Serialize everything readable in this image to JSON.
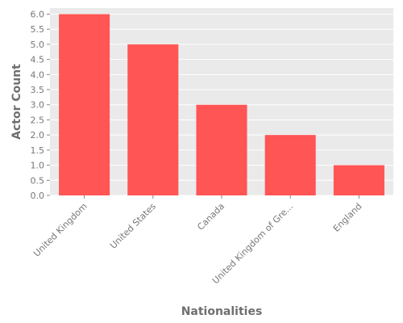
{
  "chart_data": {
    "type": "bar",
    "title": "",
    "xlabel": "Nationalities",
    "ylabel": "Actor Count",
    "categories": [
      "United Kingdom",
      "United States",
      "Canada",
      "United Kingdom of Gre...",
      "England"
    ],
    "values": [
      6,
      5,
      3,
      2,
      1
    ],
    "ylim": [
      0,
      6.2
    ],
    "yticks": [
      "0.0",
      "0.5",
      "1.0",
      "1.5",
      "2.0",
      "2.5",
      "3.0",
      "3.5",
      "4.0",
      "4.5",
      "5.0",
      "5.5",
      "6.0"
    ],
    "grid": true,
    "legend": "none",
    "colors": {
      "bar": "#ff5555",
      "plot_background": "#eaeaea",
      "grid": "#ffffff"
    }
  }
}
